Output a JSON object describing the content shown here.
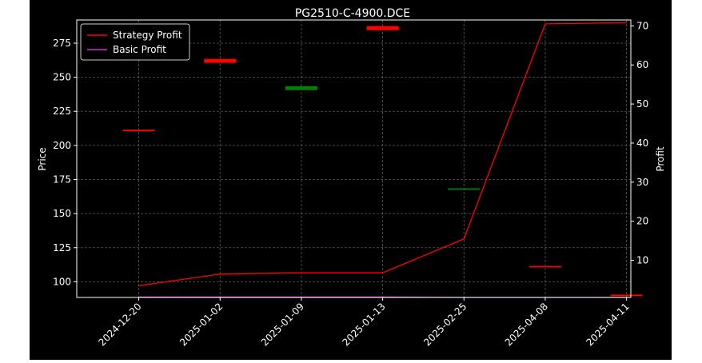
{
  "chart_data": {
    "type": "line",
    "title": "PG2510-C-4900.DCE",
    "xlabel": "",
    "ylabel_left": "Price",
    "ylabel_right": "Profit",
    "categories": [
      "2024-12-20",
      "2025-01-02",
      "2025-01-09",
      "2025-01-13",
      "2025-02-25",
      "2025-04-08",
      "2025-04-11"
    ],
    "price_axis": {
      "ylim": [
        88.5,
        292
      ],
      "ticks": [
        100,
        125,
        150,
        175,
        200,
        225,
        250,
        275
      ]
    },
    "profit_axis": {
      "ylim": [
        0.5,
        71.5
      ],
      "ticks": [
        10,
        20,
        30,
        40,
        50,
        60,
        70
      ]
    },
    "grid": true,
    "legend_position": "top-left",
    "series": [
      {
        "name": "Strategy Profit",
        "axis": "profit",
        "color": "#ff0000",
        "values": [
          3.5,
          6.5,
          6.8,
          6.8,
          15.5,
          70.5,
          70.8
        ]
      },
      {
        "name": "Basic Profit",
        "axis": "profit",
        "color": "#cc33cc",
        "values": [
          0.6,
          0.6,
          0.6,
          0.6,
          0.5,
          0.5,
          0.5
        ]
      }
    ],
    "price_marks": [
      {
        "category": "2024-12-20",
        "value": 211,
        "color": "#ff0000",
        "weight": "thin"
      },
      {
        "category": "2025-01-02",
        "value": 262,
        "color": "#ff0000",
        "weight": "thick"
      },
      {
        "category": "2025-01-09",
        "value": 242,
        "color": "#008000",
        "weight": "thick"
      },
      {
        "category": "2025-01-13",
        "value": 286,
        "color": "#ff0000",
        "weight": "thick"
      },
      {
        "category": "2025-02-25",
        "value": 168,
        "color": "#008000",
        "weight": "thin"
      },
      {
        "category": "2025-04-08",
        "value": 111,
        "color": "#ff0000",
        "weight": "thin"
      },
      {
        "category": "2025-04-11",
        "value": 90,
        "color": "#ff0000",
        "weight": "thin"
      }
    ]
  }
}
